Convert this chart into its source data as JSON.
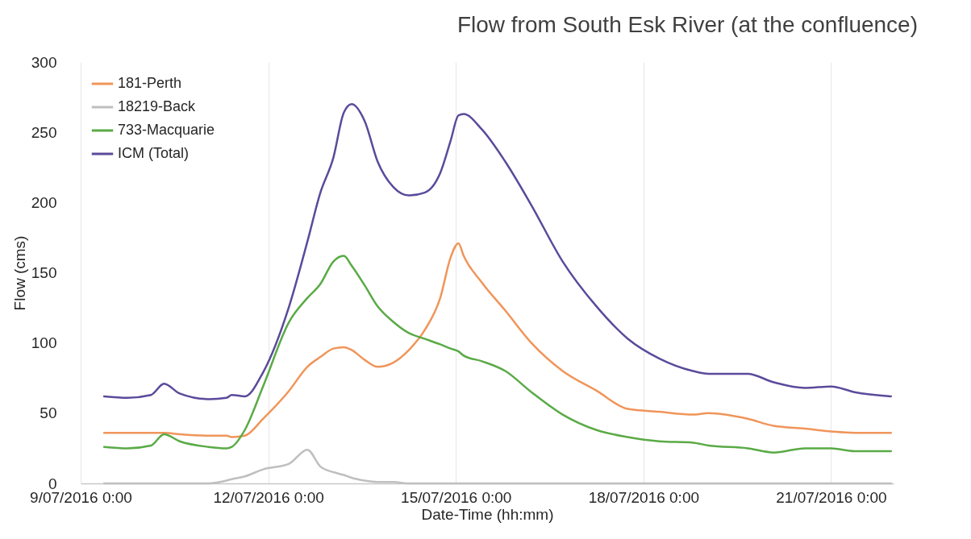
{
  "chart_data": {
    "type": "line",
    "title": "Flow from South Esk River (at the confluence)",
    "xlabel": "Date-Time (hh:mm)",
    "ylabel": "Flow (cms)",
    "x": [
      "2016-07-09T09:00",
      "2016-07-09T18:00",
      "2016-07-10T03:00",
      "2016-07-10T08:00",
      "2016-07-10T14:00",
      "2016-07-11T01:00",
      "2016-07-11T08:00",
      "2016-07-11T10:00",
      "2016-07-11T15:00",
      "2016-07-11T22:00",
      "2016-07-12T08:00",
      "2016-07-12T15:00",
      "2016-07-12T20:00",
      "2016-07-13T01:00",
      "2016-07-13T05:00",
      "2016-07-13T08:00",
      "2016-07-13T13:00",
      "2016-07-13T18:00",
      "2016-07-14T00:00",
      "2016-07-14T06:00",
      "2016-07-14T12:00",
      "2016-07-14T18:00",
      "2016-07-14T22:00",
      "2016-07-15T01:00",
      "2016-07-15T03:00",
      "2016-07-15T10:00",
      "2016-07-15T19:00",
      "2016-07-16T05:00",
      "2016-07-16T17:00",
      "2016-07-17T06:00",
      "2016-07-17T18:00",
      "2016-07-18T06:00",
      "2016-07-18T19:00",
      "2016-07-19T01:00",
      "2016-07-19T16:00",
      "2016-07-20T02:00",
      "2016-07-20T14:00",
      "2016-07-21T00:00",
      "2016-07-21T09:00",
      "2016-07-21T23:00"
    ],
    "series": [
      {
        "name": "181-Perth",
        "color": "#f0955a",
        "values": [
          36,
          36,
          36,
          36,
          35,
          34,
          34,
          33,
          34,
          46,
          66,
          83,
          90,
          96,
          97,
          95,
          88,
          83,
          86,
          95,
          109,
          132,
          161,
          171,
          162,
          143,
          123,
          100,
          80,
          66,
          53,
          51,
          49,
          50,
          46,
          41,
          39,
          37,
          36,
          36
        ]
      },
      {
        "name": "18219-Back",
        "color": "#bfbfbf",
        "values": [
          0,
          0,
          0,
          0,
          0,
          0,
          2,
          3,
          5,
          10,
          14,
          24,
          12,
          8,
          6,
          4,
          2,
          1,
          1,
          0,
          0,
          0,
          0,
          0,
          0,
          0,
          0,
          0,
          0,
          0,
          0,
          0,
          0,
          0,
          0,
          0,
          0,
          0,
          0,
          0
        ]
      },
      {
        "name": "733-Macquarie",
        "color": "#5aaa46",
        "values": [
          26,
          25,
          27,
          35,
          30,
          26,
          25,
          26,
          38,
          69,
          115,
          132,
          142,
          158,
          162,
          155,
          141,
          126,
          115,
          107,
          103,
          99,
          96,
          94,
          91,
          87,
          80,
          65,
          49,
          38,
          33,
          30,
          29,
          27,
          25,
          22,
          25,
          25,
          23,
          23
        ]
      },
      {
        "name": "ICM (Total)",
        "color": "#5b4a9b",
        "values": [
          62,
          61,
          63,
          71,
          64,
          60,
          61,
          63,
          62,
          79,
          126,
          172,
          207,
          232,
          264,
          270,
          258,
          229,
          211,
          205,
          207,
          221,
          244,
          262,
          263,
          252,
          229,
          198,
          158,
          126,
          103,
          89,
          80,
          78,
          78,
          72,
          68,
          69,
          65,
          62
        ]
      }
    ],
    "xlim": [
      "2016-07-09T00:00",
      "2016-07-22T00:00"
    ],
    "xticks": [
      {
        "value": "2016-07-09T00:00",
        "label": "9/07/2016 0:00"
      },
      {
        "value": "2016-07-12T00:00",
        "label": "12/07/2016 0:00"
      },
      {
        "value": "2016-07-15T00:00",
        "label": "15/07/2016 0:00"
      },
      {
        "value": "2016-07-18T00:00",
        "label": "18/07/2016 0:00"
      },
      {
        "value": "2016-07-21T00:00",
        "label": "21/07/2016 0:00"
      }
    ],
    "ylim": [
      0,
      300
    ],
    "yticks": [
      0,
      50,
      100,
      150,
      200,
      250,
      300
    ],
    "grid": "x",
    "legend": "top left"
  }
}
